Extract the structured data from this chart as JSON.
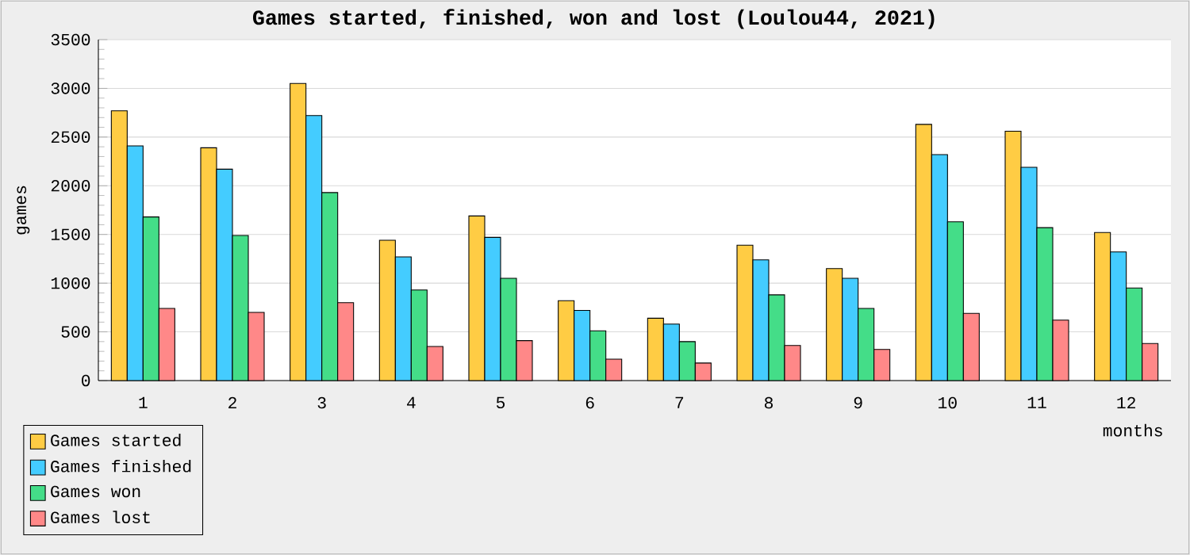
{
  "chart_data": {
    "type": "bar",
    "title": "Games started, finished, won and lost (Loulou44, 2021)",
    "xlabel": "months",
    "ylabel": "games",
    "categories": [
      "1",
      "2",
      "3",
      "4",
      "5",
      "6",
      "7",
      "8",
      "9",
      "10",
      "11",
      "12"
    ],
    "series": [
      {
        "name": "Games started",
        "color": "#ffcc44",
        "values": [
          2770,
          2390,
          3050,
          1440,
          1690,
          820,
          640,
          1390,
          1150,
          2630,
          2560,
          1520
        ]
      },
      {
        "name": "Games finished",
        "color": "#44ccff",
        "values": [
          2410,
          2170,
          2720,
          1270,
          1470,
          720,
          580,
          1240,
          1050,
          2320,
          2190,
          1320
        ]
      },
      {
        "name": "Games won",
        "color": "#44dd88",
        "values": [
          1680,
          1490,
          1930,
          930,
          1050,
          510,
          400,
          880,
          740,
          1630,
          1570,
          950
        ]
      },
      {
        "name": "Games lost",
        "color": "#ff8888",
        "values": [
          740,
          700,
          800,
          350,
          410,
          220,
          180,
          360,
          320,
          690,
          620,
          380
        ]
      }
    ],
    "ylim": [
      0,
      3500
    ],
    "yticks": [
      0,
      500,
      1000,
      1500,
      2000,
      2500,
      3000,
      3500
    ],
    "grid": "y",
    "legend": "bottom left"
  }
}
